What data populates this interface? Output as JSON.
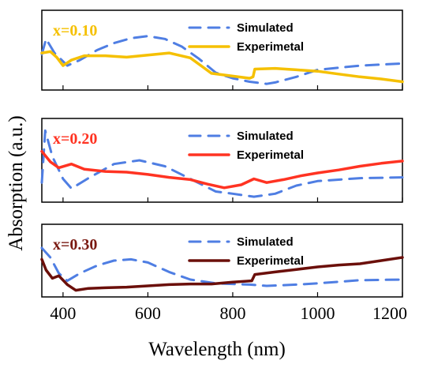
{
  "chart_data": {
    "type": "line",
    "xlabel": "Wavelength (nm)",
    "ylabel": "Absorption (a.u.)",
    "xlim": [
      350,
      1200
    ],
    "xticks": [
      400,
      600,
      800,
      1000,
      1200
    ],
    "xtick_labels": [
      "400",
      "600",
      "800",
      "1000",
      "1200"
    ],
    "grid": false,
    "panels": [
      {
        "label": "x=0.10",
        "label_color": "#f5c000",
        "ylim": [
          0,
          1
        ],
        "legend_position": "top-right",
        "series": [
          {
            "name": "Simulated",
            "style": "dashed",
            "color": "#4f7ee3",
            "points": [
              [
                350,
                0.44
              ],
              [
                360,
                0.66
              ],
              [
                380,
                0.46
              ],
              [
                410,
                0.28
              ],
              [
                440,
                0.36
              ],
              [
                480,
                0.5
              ],
              [
                520,
                0.6
              ],
              [
                560,
                0.67
              ],
              [
                600,
                0.7
              ],
              [
                640,
                0.66
              ],
              [
                680,
                0.55
              ],
              [
                720,
                0.38
              ],
              [
                760,
                0.18
              ],
              [
                800,
                0.1
              ],
              [
                840,
                0.05
              ],
              [
                880,
                0.02
              ],
              [
                900,
                0.04
              ],
              [
                950,
                0.12
              ],
              [
                1000,
                0.22
              ],
              [
                1100,
                0.28
              ],
              [
                1200,
                0.31
              ]
            ]
          },
          {
            "name": "Experimetal",
            "style": "solid",
            "color": "#f5c000",
            "points": [
              [
                350,
                0.46
              ],
              [
                370,
                0.48
              ],
              [
                385,
                0.4
              ],
              [
                400,
                0.28
              ],
              [
                420,
                0.36
              ],
              [
                450,
                0.42
              ],
              [
                500,
                0.42
              ],
              [
                550,
                0.4
              ],
              [
                600,
                0.43
              ],
              [
                650,
                0.46
              ],
              [
                700,
                0.39
              ],
              [
                750,
                0.17
              ],
              [
                800,
                0.13
              ],
              [
                840,
                0.1
              ],
              [
                848,
                0.12
              ],
              [
                852,
                0.23
              ],
              [
                900,
                0.24
              ],
              [
                950,
                0.22
              ],
              [
                1000,
                0.2
              ],
              [
                1050,
                0.16
              ],
              [
                1100,
                0.12
              ],
              [
                1150,
                0.09
              ],
              [
                1200,
                0.05
              ]
            ]
          }
        ]
      },
      {
        "label": "x=0.20",
        "label_color": "#ff3322",
        "ylim": [
          0,
          1
        ],
        "legend_position": "top-right",
        "series": [
          {
            "name": "Simulated",
            "style": "dashed",
            "color": "#4f7ee3",
            "points": [
              [
                350,
                0.2
              ],
              [
                358,
                0.9
              ],
              [
                375,
                0.55
              ],
              [
                400,
                0.25
              ],
              [
                420,
                0.12
              ],
              [
                460,
                0.26
              ],
              [
                520,
                0.45
              ],
              [
                580,
                0.5
              ],
              [
                640,
                0.42
              ],
              [
                700,
                0.25
              ],
              [
                760,
                0.08
              ],
              [
                800,
                0.05
              ],
              [
                850,
                0.01
              ],
              [
                900,
                0.05
              ],
              [
                950,
                0.16
              ],
              [
                1000,
                0.22
              ],
              [
                1100,
                0.26
              ],
              [
                1200,
                0.27
              ]
            ]
          },
          {
            "name": "Experimetal",
            "style": "solid",
            "color": "#ff3322",
            "points": [
              [
                350,
                0.62
              ],
              [
                370,
                0.48
              ],
              [
                390,
                0.4
              ],
              [
                420,
                0.45
              ],
              [
                450,
                0.38
              ],
              [
                500,
                0.35
              ],
              [
                550,
                0.34
              ],
              [
                600,
                0.31
              ],
              [
                650,
                0.27
              ],
              [
                700,
                0.24
              ],
              [
                740,
                0.18
              ],
              [
                780,
                0.13
              ],
              [
                820,
                0.17
              ],
              [
                850,
                0.25
              ],
              [
                880,
                0.2
              ],
              [
                920,
                0.24
              ],
              [
                960,
                0.29
              ],
              [
                1000,
                0.33
              ],
              [
                1050,
                0.37
              ],
              [
                1100,
                0.42
              ],
              [
                1150,
                0.46
              ],
              [
                1200,
                0.49
              ]
            ]
          }
        ]
      },
      {
        "label": "x=0.30",
        "label_color": "#7a1a12",
        "ylim": [
          0,
          1
        ],
        "legend_position": "top-right",
        "series": [
          {
            "name": "Simulated",
            "style": "dashed",
            "color": "#4f7ee3",
            "points": [
              [
                350,
                0.7
              ],
              [
                370,
                0.55
              ],
              [
                390,
                0.3
              ],
              [
                410,
                0.18
              ],
              [
                440,
                0.3
              ],
              [
                480,
                0.42
              ],
              [
                520,
                0.5
              ],
              [
                560,
                0.52
              ],
              [
                600,
                0.47
              ],
              [
                650,
                0.32
              ],
              [
                700,
                0.2
              ],
              [
                760,
                0.14
              ],
              [
                800,
                0.13
              ],
              [
                840,
                0.12
              ],
              [
                880,
                0.1
              ],
              [
                950,
                0.12
              ],
              [
                1000,
                0.14
              ],
              [
                1100,
                0.19
              ],
              [
                1200,
                0.2
              ]
            ]
          },
          {
            "name": "Experimetal",
            "style": "solid",
            "color": "#6b0f0a",
            "points": [
              [
                350,
                0.52
              ],
              [
                360,
                0.35
              ],
              [
                375,
                0.22
              ],
              [
                390,
                0.26
              ],
              [
                410,
                0.12
              ],
              [
                430,
                0.03
              ],
              [
                460,
                0.06
              ],
              [
                500,
                0.07
              ],
              [
                550,
                0.08
              ],
              [
                600,
                0.1
              ],
              [
                650,
                0.12
              ],
              [
                700,
                0.13
              ],
              [
                750,
                0.13
              ],
              [
                800,
                0.16
              ],
              [
                845,
                0.18
              ],
              [
                852,
                0.28
              ],
              [
                900,
                0.32
              ],
              [
                950,
                0.36
              ],
              [
                1000,
                0.4
              ],
              [
                1050,
                0.43
              ],
              [
                1100,
                0.45
              ],
              [
                1150,
                0.5
              ],
              [
                1200,
                0.55
              ]
            ]
          }
        ]
      }
    ]
  }
}
